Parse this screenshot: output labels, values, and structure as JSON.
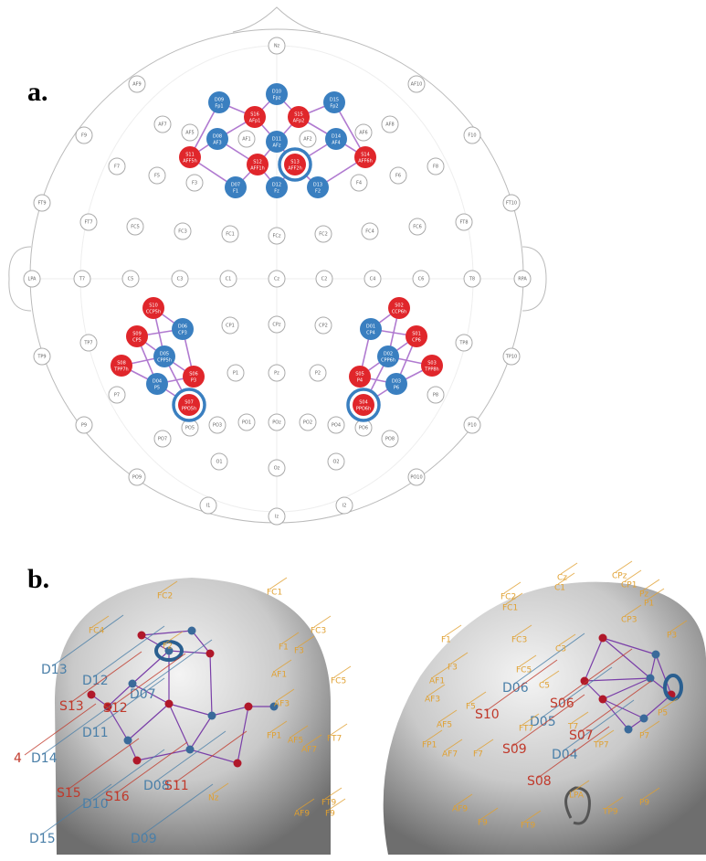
{
  "labels": {
    "a": "a.",
    "b": "b."
  },
  "montage": {
    "electrodes": [
      "Nz",
      "AF9",
      "AF10",
      "F9",
      "F10",
      "AF7",
      "AF8",
      "AF5",
      "AF6",
      "F7",
      "F8",
      "F5",
      "F6",
      "F3",
      "F4",
      "AF1",
      "AF2",
      "FT9",
      "FT10",
      "FT7",
      "FT8",
      "FC5",
      "FC6",
      "FC3",
      "FC4",
      "FC1",
      "FC2",
      "FCz",
      "LPA",
      "RPA",
      "T7",
      "C5",
      "C3",
      "C1",
      "Cz",
      "C2",
      "C4",
      "C6",
      "T8",
      "TP7",
      "TP8",
      "CP1",
      "CPz",
      "CP2",
      "TP9",
      "TP10",
      "P7",
      "P1",
      "Pz",
      "P2",
      "P8",
      "P9",
      "P10",
      "PO5",
      "PO3",
      "PO1",
      "POz",
      "PO2",
      "PO4",
      "PO6",
      "PO7",
      "PO8",
      "O1",
      "Oz",
      "O2",
      "PO9",
      "PO10",
      "I1",
      "Iz",
      "I2"
    ],
    "source_color": "#e0262b",
    "detector_color": "#3a7fc0",
    "optodes": [
      {
        "id": "D09",
        "position": "Fp1",
        "color": "#3a7fc0"
      },
      {
        "id": "D10",
        "position": "Fpz",
        "color": "#3a7fc0"
      },
      {
        "id": "D15",
        "position": "Fp2",
        "color": "#3a7fc0"
      },
      {
        "id": "S16",
        "position": "AFp1",
        "color": "#e0262b"
      },
      {
        "id": "S15",
        "position": "AFp2",
        "color": "#e0262b"
      },
      {
        "id": "D08",
        "position": "AF3",
        "color": "#3a7fc0"
      },
      {
        "id": "D11",
        "position": "AFz",
        "color": "#3a7fc0"
      },
      {
        "id": "D14",
        "position": "AF4",
        "color": "#3a7fc0"
      },
      {
        "id": "S11",
        "position": "AFF5h",
        "color": "#e0262b"
      },
      {
        "id": "S12",
        "position": "AFF1h",
        "color": "#e0262b"
      },
      {
        "id": "S13",
        "position": "AFF2h",
        "color": "#e0262b",
        "highlight": true
      },
      {
        "id": "S14",
        "position": "AFF6h",
        "color": "#e0262b"
      },
      {
        "id": "D07",
        "position": "F1",
        "color": "#3a7fc0"
      },
      {
        "id": "D12",
        "position": "Fz",
        "color": "#3a7fc0"
      },
      {
        "id": "D13",
        "position": "F2",
        "color": "#3a7fc0"
      },
      {
        "id": "S10",
        "position": "CCP5h",
        "color": "#e0262b"
      },
      {
        "id": "D06",
        "position": "CP3",
        "color": "#3a7fc0"
      },
      {
        "id": "S09",
        "position": "CP5",
        "color": "#e0262b"
      },
      {
        "id": "D05",
        "position": "CPP5h",
        "color": "#3a7fc0"
      },
      {
        "id": "S08",
        "position": "TPP7h",
        "color": "#e0262b"
      },
      {
        "id": "D04",
        "position": "P5",
        "color": "#3a7fc0"
      },
      {
        "id": "S06",
        "position": "P3",
        "color": "#e0262b"
      },
      {
        "id": "S07",
        "position": "PPO5h",
        "color": "#e0262b",
        "highlight": true
      },
      {
        "id": "S02",
        "position": "CCP6h",
        "color": "#e0262b"
      },
      {
        "id": "D01",
        "position": "CP4",
        "color": "#3a7fc0"
      },
      {
        "id": "S01",
        "position": "CP6",
        "color": "#e0262b"
      },
      {
        "id": "D02",
        "position": "CPP6h",
        "color": "#3a7fc0"
      },
      {
        "id": "S03",
        "position": "TPP8h",
        "color": "#e0262b"
      },
      {
        "id": "D03",
        "position": "P6",
        "color": "#3a7fc0"
      },
      {
        "id": "S05",
        "position": "P4",
        "color": "#e0262b"
      },
      {
        "id": "S04",
        "position": "PPO6h",
        "color": "#e0262b",
        "highlight": true
      }
    ]
  },
  "renders": {
    "front": [
      {
        "text": "D13",
        "color": "#4a7fa8"
      },
      {
        "text": "D12",
        "color": "#4a7fa8"
      },
      {
        "text": "D11",
        "color": "#4a7fa8"
      },
      {
        "text": "4",
        "color": "#c0392b"
      },
      {
        "text": "D14",
        "color": "#4a7fa8"
      },
      {
        "text": "D15",
        "color": "#4a7fa8"
      },
      {
        "text": "D10",
        "color": "#4a7fa8"
      },
      {
        "text": "D09",
        "color": "#4a7fa8"
      },
      {
        "text": "D08",
        "color": "#4a7fa8"
      },
      {
        "text": "D07",
        "color": "#4a7fa8"
      },
      {
        "text": "S13",
        "color": "#c0392b"
      },
      {
        "text": "S12",
        "color": "#c0392b"
      },
      {
        "text": "S15",
        "color": "#c0392b"
      },
      {
        "text": "S16",
        "color": "#c0392b"
      },
      {
        "text": "S11",
        "color": "#c0392b"
      },
      {
        "text": "FC2",
        "color": "#e0a030"
      },
      {
        "text": "FC1",
        "color": "#e0a030"
      },
      {
        "text": "FC4",
        "color": "#e0a030"
      },
      {
        "text": "F2",
        "color": "#e0a030"
      },
      {
        "text": "F1",
        "color": "#e0a030"
      },
      {
        "text": "FC3",
        "color": "#e0a030"
      },
      {
        "text": "F3",
        "color": "#e0a030"
      },
      {
        "text": "AF1",
        "color": "#e0a030"
      },
      {
        "text": "AF3",
        "color": "#e0a030"
      },
      {
        "text": "FC5",
        "color": "#e0a030"
      },
      {
        "text": "AF5",
        "color": "#e0a030"
      },
      {
        "text": "FT7",
        "color": "#e0a030"
      },
      {
        "text": "AF7",
        "color": "#e0a030"
      },
      {
        "text": "FT9",
        "color": "#e0a030"
      },
      {
        "text": "F9",
        "color": "#e0a030"
      },
      {
        "text": "AF9",
        "color": "#e0a030"
      },
      {
        "text": "Nz",
        "color": "#e0a030"
      },
      {
        "text": "FP1",
        "color": "#e0a030"
      }
    ],
    "side": [
      {
        "text": "D06",
        "color": "#4a7fa8"
      },
      {
        "text": "D05",
        "color": "#4a7fa8"
      },
      {
        "text": "D04",
        "color": "#4a7fa8"
      },
      {
        "text": "S10",
        "color": "#c0392b"
      },
      {
        "text": "S06",
        "color": "#c0392b"
      },
      {
        "text": "S09",
        "color": "#c0392b"
      },
      {
        "text": "S07",
        "color": "#c0392b"
      },
      {
        "text": "S08",
        "color": "#c0392b"
      },
      {
        "text": "Cz",
        "color": "#e0a030"
      },
      {
        "text": "C1",
        "color": "#e0a030"
      },
      {
        "text": "CPz",
        "color": "#e0a030"
      },
      {
        "text": "CP1",
        "color": "#e0a030"
      },
      {
        "text": "Pz",
        "color": "#e0a030"
      },
      {
        "text": "P1",
        "color": "#e0a030"
      },
      {
        "text": "FC2",
        "color": "#e0a030"
      },
      {
        "text": "FC1",
        "color": "#e0a030"
      },
      {
        "text": "CP3",
        "color": "#e0a030"
      },
      {
        "text": "C3",
        "color": "#e0a030"
      },
      {
        "text": "FC3",
        "color": "#e0a030"
      },
      {
        "text": "P3",
        "color": "#e0a030"
      },
      {
        "text": "F3",
        "color": "#e0a030"
      },
      {
        "text": "F1",
        "color": "#e0a030"
      },
      {
        "text": "AF1",
        "color": "#e0a030"
      },
      {
        "text": "AF3",
        "color": "#e0a030"
      },
      {
        "text": "F5",
        "color": "#e0a030"
      },
      {
        "text": "FC5",
        "color": "#e0a030"
      },
      {
        "text": "C5",
        "color": "#e0a030"
      },
      {
        "text": "AF5",
        "color": "#e0a030"
      },
      {
        "text": "FP1",
        "color": "#e0a030"
      },
      {
        "text": "AF7",
        "color": "#e0a030"
      },
      {
        "text": "F7",
        "color": "#e0a030"
      },
      {
        "text": "FT7",
        "color": "#e0a030"
      },
      {
        "text": "T7",
        "color": "#e0a030"
      },
      {
        "text": "TP7",
        "color": "#e0a030"
      },
      {
        "text": "P7",
        "color": "#e0a030"
      },
      {
        "text": "P5",
        "color": "#e0a030"
      },
      {
        "text": "AF9",
        "color": "#e0a030"
      },
      {
        "text": "F9",
        "color": "#e0a030"
      },
      {
        "text": "FT9",
        "color": "#e0a030"
      },
      {
        "text": "TP9",
        "color": "#e0a030"
      },
      {
        "text": "P9",
        "color": "#e0a030"
      },
      {
        "text": "LPA",
        "color": "#e0a030"
      }
    ]
  }
}
